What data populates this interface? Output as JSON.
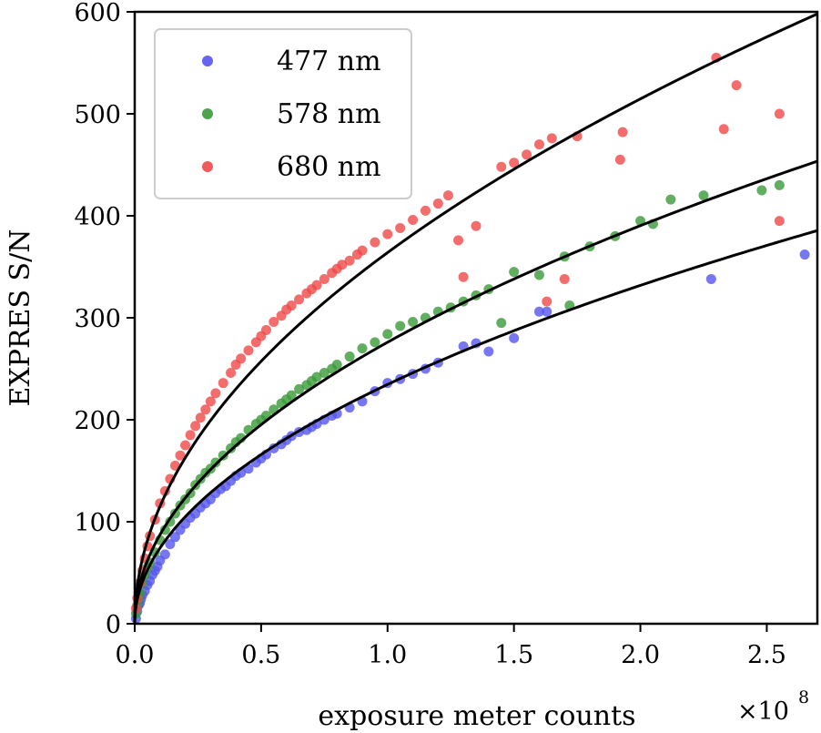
{
  "chart_data": {
    "type": "scatter",
    "title": "",
    "xlabel": "exposure meter counts",
    "ylabel": "EXPRES S/N",
    "x_multiplier": {
      "base": "×10",
      "exponent": "8"
    },
    "xlim": [
      0,
      2.7
    ],
    "ylim": [
      0,
      600
    ],
    "x_ticks": [
      0.0,
      0.5,
      1.0,
      1.5,
      2.0,
      2.5
    ],
    "x_tick_labels": [
      "0.0",
      "0.5",
      "1.0",
      "1.5",
      "2.0",
      "2.5"
    ],
    "y_ticks": [
      0,
      100,
      200,
      300,
      400,
      500,
      600
    ],
    "y_tick_labels": [
      "0",
      "100",
      "200",
      "300",
      "400",
      "500",
      "600"
    ],
    "grid": false,
    "legend_position": "top-left",
    "series": [
      {
        "name": "477 nm",
        "color": "#5555ee",
        "fit_coefficient": 234.6,
        "points": [
          [
            0.005,
            5
          ],
          [
            0.01,
            12
          ],
          [
            0.015,
            18
          ],
          [
            0.02,
            20
          ],
          [
            0.025,
            24
          ],
          [
            0.03,
            28
          ],
          [
            0.04,
            32
          ],
          [
            0.05,
            38
          ],
          [
            0.06,
            42
          ],
          [
            0.07,
            48
          ],
          [
            0.08,
            52
          ],
          [
            0.09,
            56
          ],
          [
            0.1,
            62
          ],
          [
            0.12,
            68
          ],
          [
            0.14,
            78
          ],
          [
            0.16,
            85
          ],
          [
            0.18,
            92
          ],
          [
            0.2,
            98
          ],
          [
            0.22,
            104
          ],
          [
            0.24,
            108
          ],
          [
            0.26,
            114
          ],
          [
            0.28,
            118
          ],
          [
            0.3,
            122
          ],
          [
            0.32,
            128
          ],
          [
            0.34,
            132
          ],
          [
            0.36,
            135
          ],
          [
            0.38,
            140
          ],
          [
            0.4,
            145
          ],
          [
            0.42,
            148
          ],
          [
            0.45,
            152
          ],
          [
            0.48,
            158
          ],
          [
            0.5,
            162
          ],
          [
            0.52,
            166
          ],
          [
            0.55,
            172
          ],
          [
            0.58,
            176
          ],
          [
            0.6,
            180
          ],
          [
            0.62,
            184
          ],
          [
            0.65,
            188
          ],
          [
            0.68,
            190
          ],
          [
            0.7,
            193
          ],
          [
            0.72,
            196
          ],
          [
            0.75,
            200
          ],
          [
            0.78,
            204
          ],
          [
            0.8,
            206
          ],
          [
            0.85,
            212
          ],
          [
            0.9,
            218
          ],
          [
            0.95,
            228
          ],
          [
            1.0,
            236
          ],
          [
            1.05,
            240
          ],
          [
            1.1,
            245
          ],
          [
            1.15,
            250
          ],
          [
            1.2,
            256
          ],
          [
            1.3,
            272
          ],
          [
            1.35,
            275
          ],
          [
            1.4,
            267
          ],
          [
            1.5,
            280
          ],
          [
            1.6,
            306
          ],
          [
            1.63,
            306
          ],
          [
            2.28,
            338
          ],
          [
            2.65,
            362
          ]
        ]
      },
      {
        "name": "578 nm",
        "color": "#3a9a3a",
        "fit_coefficient": 276.0,
        "points": [
          [
            0.005,
            10
          ],
          [
            0.01,
            18
          ],
          [
            0.015,
            24
          ],
          [
            0.02,
            30
          ],
          [
            0.03,
            40
          ],
          [
            0.04,
            48
          ],
          [
            0.05,
            55
          ],
          [
            0.06,
            60
          ],
          [
            0.08,
            70
          ],
          [
            0.1,
            82
          ],
          [
            0.12,
            92
          ],
          [
            0.14,
            100
          ],
          [
            0.16,
            108
          ],
          [
            0.18,
            116
          ],
          [
            0.2,
            122
          ],
          [
            0.22,
            128
          ],
          [
            0.24,
            136
          ],
          [
            0.26,
            142
          ],
          [
            0.28,
            148
          ],
          [
            0.3,
            152
          ],
          [
            0.32,
            158
          ],
          [
            0.35,
            165
          ],
          [
            0.38,
            172
          ],
          [
            0.4,
            178
          ],
          [
            0.42,
            182
          ],
          [
            0.45,
            190
          ],
          [
            0.48,
            196
          ],
          [
            0.5,
            200
          ],
          [
            0.52,
            204
          ],
          [
            0.55,
            210
          ],
          [
            0.58,
            216
          ],
          [
            0.6,
            220
          ],
          [
            0.62,
            224
          ],
          [
            0.65,
            230
          ],
          [
            0.68,
            234
          ],
          [
            0.7,
            238
          ],
          [
            0.72,
            242
          ],
          [
            0.75,
            246
          ],
          [
            0.78,
            250
          ],
          [
            0.8,
            254
          ],
          [
            0.85,
            262
          ],
          [
            0.9,
            270
          ],
          [
            0.95,
            276
          ],
          [
            1.0,
            284
          ],
          [
            1.05,
            292
          ],
          [
            1.1,
            296
          ],
          [
            1.15,
            300
          ],
          [
            1.2,
            306
          ],
          [
            1.25,
            310
          ],
          [
            1.3,
            316
          ],
          [
            1.35,
            322
          ],
          [
            1.4,
            328
          ],
          [
            1.45,
            295
          ],
          [
            1.5,
            345
          ],
          [
            1.6,
            342
          ],
          [
            1.7,
            360
          ],
          [
            1.72,
            312
          ],
          [
            1.8,
            370
          ],
          [
            1.9,
            380
          ],
          [
            2.0,
            395
          ],
          [
            2.05,
            392
          ],
          [
            2.12,
            416
          ],
          [
            2.25,
            420
          ],
          [
            2.48,
            425
          ],
          [
            2.55,
            430
          ]
        ]
      },
      {
        "name": "680 nm",
        "color": "#f04848",
        "fit_coefficient": 363.9,
        "points": [
          [
            0.005,
            15
          ],
          [
            0.01,
            25
          ],
          [
            0.02,
            40
          ],
          [
            0.03,
            52
          ],
          [
            0.04,
            64
          ],
          [
            0.05,
            76
          ],
          [
            0.06,
            86
          ],
          [
            0.08,
            102
          ],
          [
            0.1,
            118
          ],
          [
            0.12,
            130
          ],
          [
            0.14,
            142
          ],
          [
            0.16,
            155
          ],
          [
            0.18,
            165
          ],
          [
            0.2,
            175
          ],
          [
            0.22,
            185
          ],
          [
            0.24,
            194
          ],
          [
            0.26,
            202
          ],
          [
            0.28,
            210
          ],
          [
            0.3,
            218
          ],
          [
            0.32,
            226
          ],
          [
            0.35,
            236
          ],
          [
            0.38,
            246
          ],
          [
            0.4,
            254
          ],
          [
            0.42,
            260
          ],
          [
            0.45,
            268
          ],
          [
            0.48,
            276
          ],
          [
            0.5,
            282
          ],
          [
            0.52,
            288
          ],
          [
            0.55,
            296
          ],
          [
            0.58,
            302
          ],
          [
            0.6,
            308
          ],
          [
            0.62,
            312
          ],
          [
            0.65,
            318
          ],
          [
            0.68,
            324
          ],
          [
            0.7,
            328
          ],
          [
            0.72,
            332
          ],
          [
            0.75,
            338
          ],
          [
            0.78,
            344
          ],
          [
            0.8,
            348
          ],
          [
            0.82,
            352
          ],
          [
            0.85,
            356
          ],
          [
            0.88,
            362
          ],
          [
            0.9,
            366
          ],
          [
            0.95,
            374
          ],
          [
            1.0,
            382
          ],
          [
            1.05,
            388
          ],
          [
            1.1,
            396
          ],
          [
            1.15,
            405
          ],
          [
            1.2,
            412
          ],
          [
            1.24,
            420
          ],
          [
            1.28,
            376
          ],
          [
            1.3,
            340
          ],
          [
            1.35,
            390
          ],
          [
            1.45,
            448
          ],
          [
            1.5,
            452
          ],
          [
            1.55,
            460
          ],
          [
            1.6,
            470
          ],
          [
            1.63,
            316
          ],
          [
            1.65,
            476
          ],
          [
            1.7,
            338
          ],
          [
            1.75,
            478
          ],
          [
            1.92,
            455
          ],
          [
            1.93,
            482
          ],
          [
            2.3,
            555
          ],
          [
            2.33,
            485
          ],
          [
            2.38,
            528
          ],
          [
            2.55,
            500
          ],
          [
            2.55,
            395
          ]
        ]
      }
    ]
  }
}
